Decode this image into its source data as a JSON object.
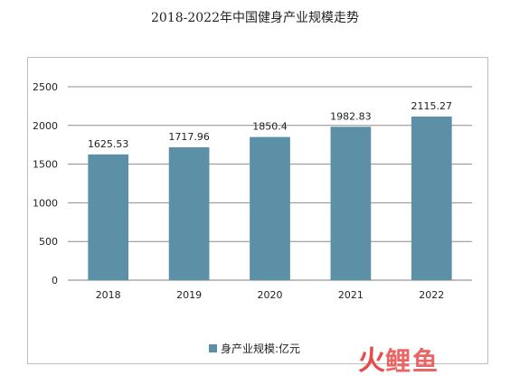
{
  "chart_data": {
    "type": "bar",
    "title": "2018-2022年中国健身产业规模走势",
    "categories": [
      "2018",
      "2019",
      "2020",
      "2021",
      "2022"
    ],
    "series": [
      {
        "name": "身产业规模:亿元",
        "values": [
          1625.53,
          1717.96,
          1850.4,
          1982.83,
          2115.27
        ]
      }
    ],
    "data_labels": [
      "1625.53",
      "1717.96",
      "1850.4",
      "1982.83",
      "2115.27"
    ],
    "yticks": [
      "0",
      "500",
      "1000",
      "1500",
      "2000",
      "2500"
    ],
    "ylim": [
      0,
      2500
    ],
    "xlabel": "",
    "ylabel": "",
    "grid": true,
    "legend_position": "bottom",
    "bar_color": "#5b90a6"
  },
  "watermark": {
    "text": "鲤鱼",
    "icon": "fire-icon"
  }
}
